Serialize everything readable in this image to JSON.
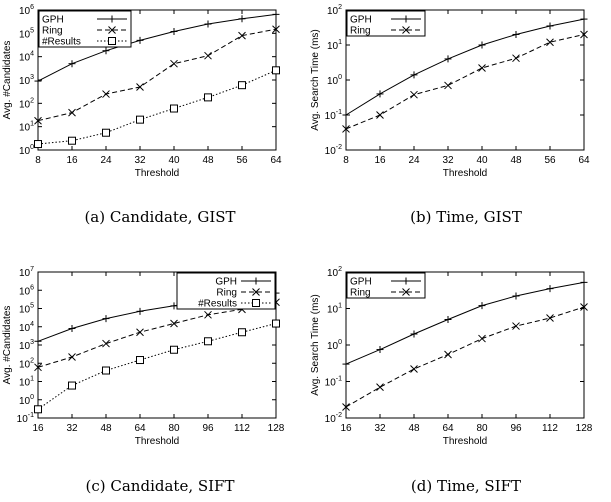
{
  "chart_data": [
    {
      "type": "line",
      "caption": "(a) Candidate, GIST",
      "xlabel": "Threshold",
      "ylabel": "Avg. #Candidates",
      "y_scale": "log",
      "x": [
        8,
        16,
        24,
        32,
        40,
        48,
        56,
        64
      ],
      "xlim": [
        8,
        64
      ],
      "x_ticks": [
        8,
        16,
        24,
        32,
        40,
        48,
        56,
        64
      ],
      "ylim": [
        1,
        1000000
      ],
      "y_ticks": [
        {
          "base": "10",
          "exp": "0"
        },
        {
          "base": "10",
          "exp": "1"
        },
        {
          "base": "10",
          "exp": "2"
        },
        {
          "base": "10",
          "exp": "3"
        },
        {
          "base": "10",
          "exp": "4"
        },
        {
          "base": "10",
          "exp": "5"
        },
        {
          "base": "10",
          "exp": "6"
        }
      ],
      "legend_placement": "top-left",
      "series": [
        {
          "name": "GPH",
          "marker": "plus",
          "dash": "solid",
          "values": [
            900,
            5000,
            18000,
            50000,
            120000,
            250000,
            420000,
            650000
          ]
        },
        {
          "name": "Ring",
          "marker": "cross",
          "dash": "dashed",
          "values": [
            18,
            40,
            250,
            500,
            5000,
            11000,
            80000,
            150000
          ]
        },
        {
          "name": "#Results",
          "marker": "square",
          "dash": "dotted",
          "values": [
            1.8,
            2.5,
            5.5,
            20,
            60,
            180,
            600,
            2600
          ]
        }
      ]
    },
    {
      "type": "line",
      "caption": "(b) Time, GIST",
      "xlabel": "Threshold",
      "ylabel": "Avg. Search Time (ms)",
      "y_scale": "log",
      "x": [
        8,
        16,
        24,
        32,
        40,
        48,
        56,
        64
      ],
      "xlim": [
        8,
        64
      ],
      "x_ticks": [
        8,
        16,
        24,
        32,
        40,
        48,
        56,
        64
      ],
      "ylim": [
        0.01,
        100
      ],
      "y_ticks": [
        {
          "base": "10",
          "exp": "-2"
        },
        {
          "base": "10",
          "exp": "-1"
        },
        {
          "base": "10",
          "exp": "0"
        },
        {
          "base": "10",
          "exp": "1"
        },
        {
          "base": "10",
          "exp": "2"
        }
      ],
      "legend_placement": "top-left",
      "series": [
        {
          "name": "GPH",
          "marker": "plus",
          "dash": "solid",
          "values": [
            0.1,
            0.4,
            1.4,
            4,
            10,
            20,
            35,
            55
          ]
        },
        {
          "name": "Ring",
          "marker": "cross",
          "dash": "dashed",
          "values": [
            0.04,
            0.1,
            0.38,
            0.7,
            2.2,
            4.2,
            12,
            20
          ]
        }
      ]
    },
    {
      "type": "line",
      "caption": "(c) Candidate, SIFT",
      "xlabel": "Threshold",
      "ylabel": "Avg. #Candidates",
      "y_scale": "log",
      "x": [
        16,
        32,
        48,
        64,
        80,
        96,
        112,
        128
      ],
      "xlim": [
        16,
        128
      ],
      "x_ticks": [
        16,
        32,
        48,
        64,
        80,
        96,
        112,
        128
      ],
      "ylim": [
        0.1,
        10000000
      ],
      "y_ticks": [
        {
          "base": "10",
          "exp": "-1"
        },
        {
          "base": "10",
          "exp": "0"
        },
        {
          "base": "10",
          "exp": "1"
        },
        {
          "base": "10",
          "exp": "2"
        },
        {
          "base": "10",
          "exp": "3"
        },
        {
          "base": "10",
          "exp": "4"
        },
        {
          "base": "10",
          "exp": "5"
        },
        {
          "base": "10",
          "exp": "6"
        },
        {
          "base": "10",
          "exp": "7"
        }
      ],
      "legend_placement": "top-right",
      "series": [
        {
          "name": "GPH",
          "marker": "plus",
          "dash": "solid",
          "values": [
            1600,
            8000,
            28000,
            70000,
            140000,
            260000,
            420000,
            700000
          ]
        },
        {
          "name": "Ring",
          "marker": "cross",
          "dash": "dashed",
          "values": [
            60,
            220,
            1200,
            5000,
            15000,
            45000,
            90000,
            220000
          ]
        },
        {
          "name": "#Results",
          "marker": "square",
          "dash": "dotted",
          "values": [
            0.3,
            6,
            40,
            150,
            550,
            1600,
            5000,
            15000
          ]
        }
      ]
    },
    {
      "type": "line",
      "caption": "(d) Time, SIFT",
      "xlabel": "Threshold",
      "ylabel": "Avg. Search Time (ms)",
      "y_scale": "log",
      "x": [
        16,
        32,
        48,
        64,
        80,
        96,
        112,
        128
      ],
      "xlim": [
        16,
        128
      ],
      "x_ticks": [
        16,
        32,
        48,
        64,
        80,
        96,
        112,
        128
      ],
      "ylim": [
        0.01,
        100
      ],
      "y_ticks": [
        {
          "base": "10",
          "exp": "-2"
        },
        {
          "base": "10",
          "exp": "-1"
        },
        {
          "base": "10",
          "exp": "0"
        },
        {
          "base": "10",
          "exp": "1"
        },
        {
          "base": "10",
          "exp": "2"
        }
      ],
      "legend_placement": "top-left",
      "series": [
        {
          "name": "GPH",
          "marker": "plus",
          "dash": "solid",
          "values": [
            0.3,
            0.75,
            2,
            5,
            12,
            22,
            35,
            52
          ]
        },
        {
          "name": "Ring",
          "marker": "cross",
          "dash": "dashed",
          "values": [
            0.02,
            0.07,
            0.22,
            0.55,
            1.5,
            3.3,
            5.5,
            11
          ]
        }
      ]
    }
  ]
}
